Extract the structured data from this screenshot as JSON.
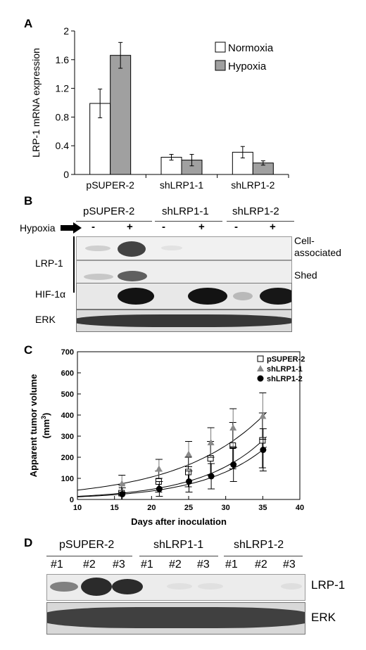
{
  "panels": {
    "a": "A",
    "b": "B",
    "c": "C",
    "d": "D"
  },
  "colors": {
    "normoxia": "#ffffff",
    "hypoxia": "#a0a0a0",
    "axis": "#000000"
  },
  "chart_data": [
    {
      "type": "bar",
      "ylabel": "LRP-1 mRNA expression",
      "ylim": [
        0,
        2
      ],
      "yticks": [
        "0",
        "0.4",
        "0.8",
        "1.2",
        "1.6",
        "2"
      ],
      "categories": [
        "pSUPER-2",
        "shLRP1-1",
        "shLRP1-2"
      ],
      "series": [
        {
          "name": "Normoxia",
          "values": [
            0.99,
            0.24,
            0.31
          ],
          "errors": [
            0.2,
            0.04,
            0.08
          ]
        },
        {
          "name": "Hypoxia",
          "values": [
            1.66,
            0.2,
            0.16
          ],
          "errors": [
            0.18,
            0.08,
            0.03
          ]
        }
      ],
      "legend": "top-right"
    },
    {
      "type": "scatter",
      "xlabel": "Days after inoculation",
      "ylabel": "Apparent tumor volume (mm3)",
      "ylabel_main": "Apparent tumor volume",
      "ylabel_unit": "(mm",
      "ylabel_sup": "3",
      "ylabel_close": ")",
      "xlim": [
        10,
        40
      ],
      "ylim": [
        0,
        700
      ],
      "xticks": [
        "10",
        "15",
        "20",
        "25",
        "30",
        "35",
        "40"
      ],
      "yticks": [
        "0",
        "100",
        "200",
        "300",
        "400",
        "500",
        "600",
        "700"
      ],
      "x": [
        16,
        21,
        25,
        28,
        31,
        35
      ],
      "series": [
        {
          "name": "pSUPER-2",
          "marker": "square-open",
          "values": [
            30,
            85,
            130,
            195,
            255,
            280
          ],
          "errors": [
            40,
            50,
            70,
            80,
            110,
            130
          ]
        },
        {
          "name": "shLRP1-1",
          "marker": "triangle-gray",
          "values": [
            75,
            145,
            215,
            270,
            340,
            395
          ],
          "errors": [
            40,
            45,
            60,
            70,
            90,
            110
          ]
        },
        {
          "name": "shLRP1-2",
          "marker": "circle-filled",
          "values": [
            25,
            50,
            85,
            110,
            165,
            235
          ],
          "errors": [
            30,
            35,
            50,
            60,
            80,
            100
          ]
        }
      ],
      "legend": "top-right"
    }
  ],
  "blot_b": {
    "groups": [
      "pSUPER-2",
      "shLRP1-1",
      "shLRP1-2"
    ],
    "hypoxia_label": "Hypoxia",
    "signs": [
      "-",
      "+",
      "-",
      "+",
      "-",
      "+"
    ],
    "lrp1_label": "LRP-1",
    "cell_label_1": "Cell-",
    "cell_label_2": "associated",
    "shed_label": "Shed",
    "hif_label": "HIF-1α",
    "erk_label": "ERK"
  },
  "blot_d": {
    "groups": [
      "pSUPER-2",
      "shLRP1-1",
      "shLRP1-2"
    ],
    "lanes": [
      "#1",
      "#2",
      "#3",
      "#1",
      "#2",
      "#3",
      "#1",
      "#2",
      "#3"
    ],
    "lrp1_label": "LRP-1",
    "erk_label": "ERK"
  }
}
